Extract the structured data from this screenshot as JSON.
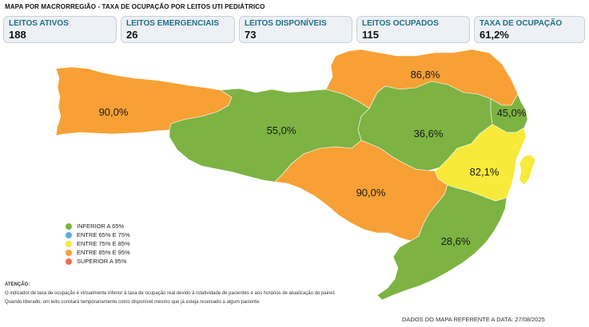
{
  "header": {
    "title": "MAPA POR MACRORREGIÃO - TAXA DE OCUPAÇÃO POR LEITOS UTI PEDIÁTRICO"
  },
  "cards": [
    {
      "label": "LEITOS ATIVOS",
      "value": "188"
    },
    {
      "label": "LEITOS EMERGENCIAIS",
      "value": "26"
    },
    {
      "label": "LEITOS DISPONÍVEIS",
      "value": "73"
    },
    {
      "label": "LEITOS OCUPADOS",
      "value": "115"
    },
    {
      "label": "TAXA DE OCUPAÇÃO",
      "value": "61,2%"
    }
  ],
  "map": {
    "regions": [
      {
        "name": "grande-oeste",
        "value": "90,0%",
        "color": "#f7a035"
      },
      {
        "name": "meio-oeste",
        "value": "55,0%",
        "color": "#7cb342"
      },
      {
        "name": "planalto-norte",
        "value": "86,8%",
        "color": "#f7a035"
      },
      {
        "name": "vale-itajai",
        "value": "36,6%",
        "color": "#7cb342"
      },
      {
        "name": "foz-itajai",
        "value": "45,0%",
        "color": "#7cb342"
      },
      {
        "name": "grande-florianopolis",
        "value": "82,1%",
        "color": "#f7ea3a"
      },
      {
        "name": "serra",
        "value": "90,0%",
        "color": "#f7a035"
      },
      {
        "name": "sul",
        "value": "28,6%",
        "color": "#7cb342"
      }
    ]
  },
  "legend": [
    {
      "label": "INFERIOR A 65%",
      "color": "#7cb342"
    },
    {
      "label": "ENTRE 65% E 75%",
      "color": "#5aaee0"
    },
    {
      "label": "ENTRE 75% E 85%",
      "color": "#f7ea3a"
    },
    {
      "label": "ENTRE 85% E 95%",
      "color": "#f7a035"
    },
    {
      "label": "SUPERIOR A 95%",
      "color": "#f26b4a"
    }
  ],
  "notes": {
    "heading": "ATENÇÃO:",
    "line1": "O indicador de taxa de ocupação é virtualmente inferior à taxa de ocupação real devido à rotatividade de pacientes e aos horários de atualização do painel.",
    "line2": "Quando liberado, um leito constará temporariamente como disponível mesmo que já esteja reservado a algum paciente."
  },
  "footer": {
    "date_text": "DADOS DO MAPA REFERENTE A DATA: 27/08/2025"
  }
}
